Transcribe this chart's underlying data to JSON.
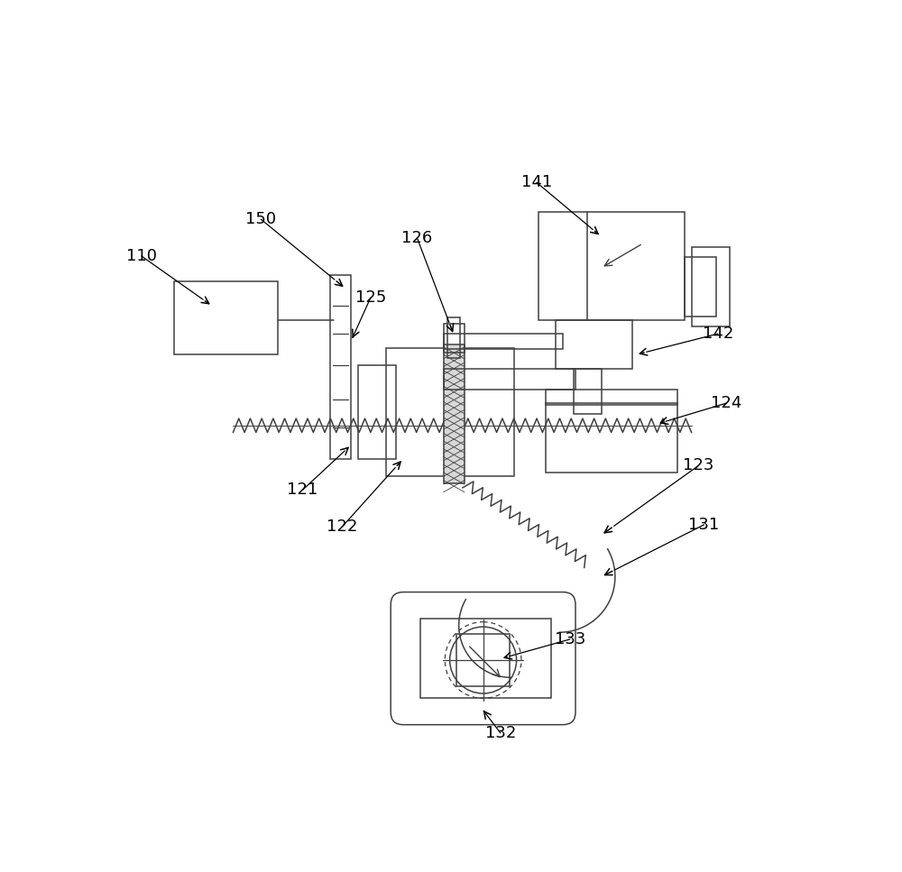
{
  "fig_width": 10.0,
  "fig_height": 9.67,
  "dpi": 100,
  "bg_color": "#ffffff",
  "lc": "#404040",
  "lw": 1.1
}
